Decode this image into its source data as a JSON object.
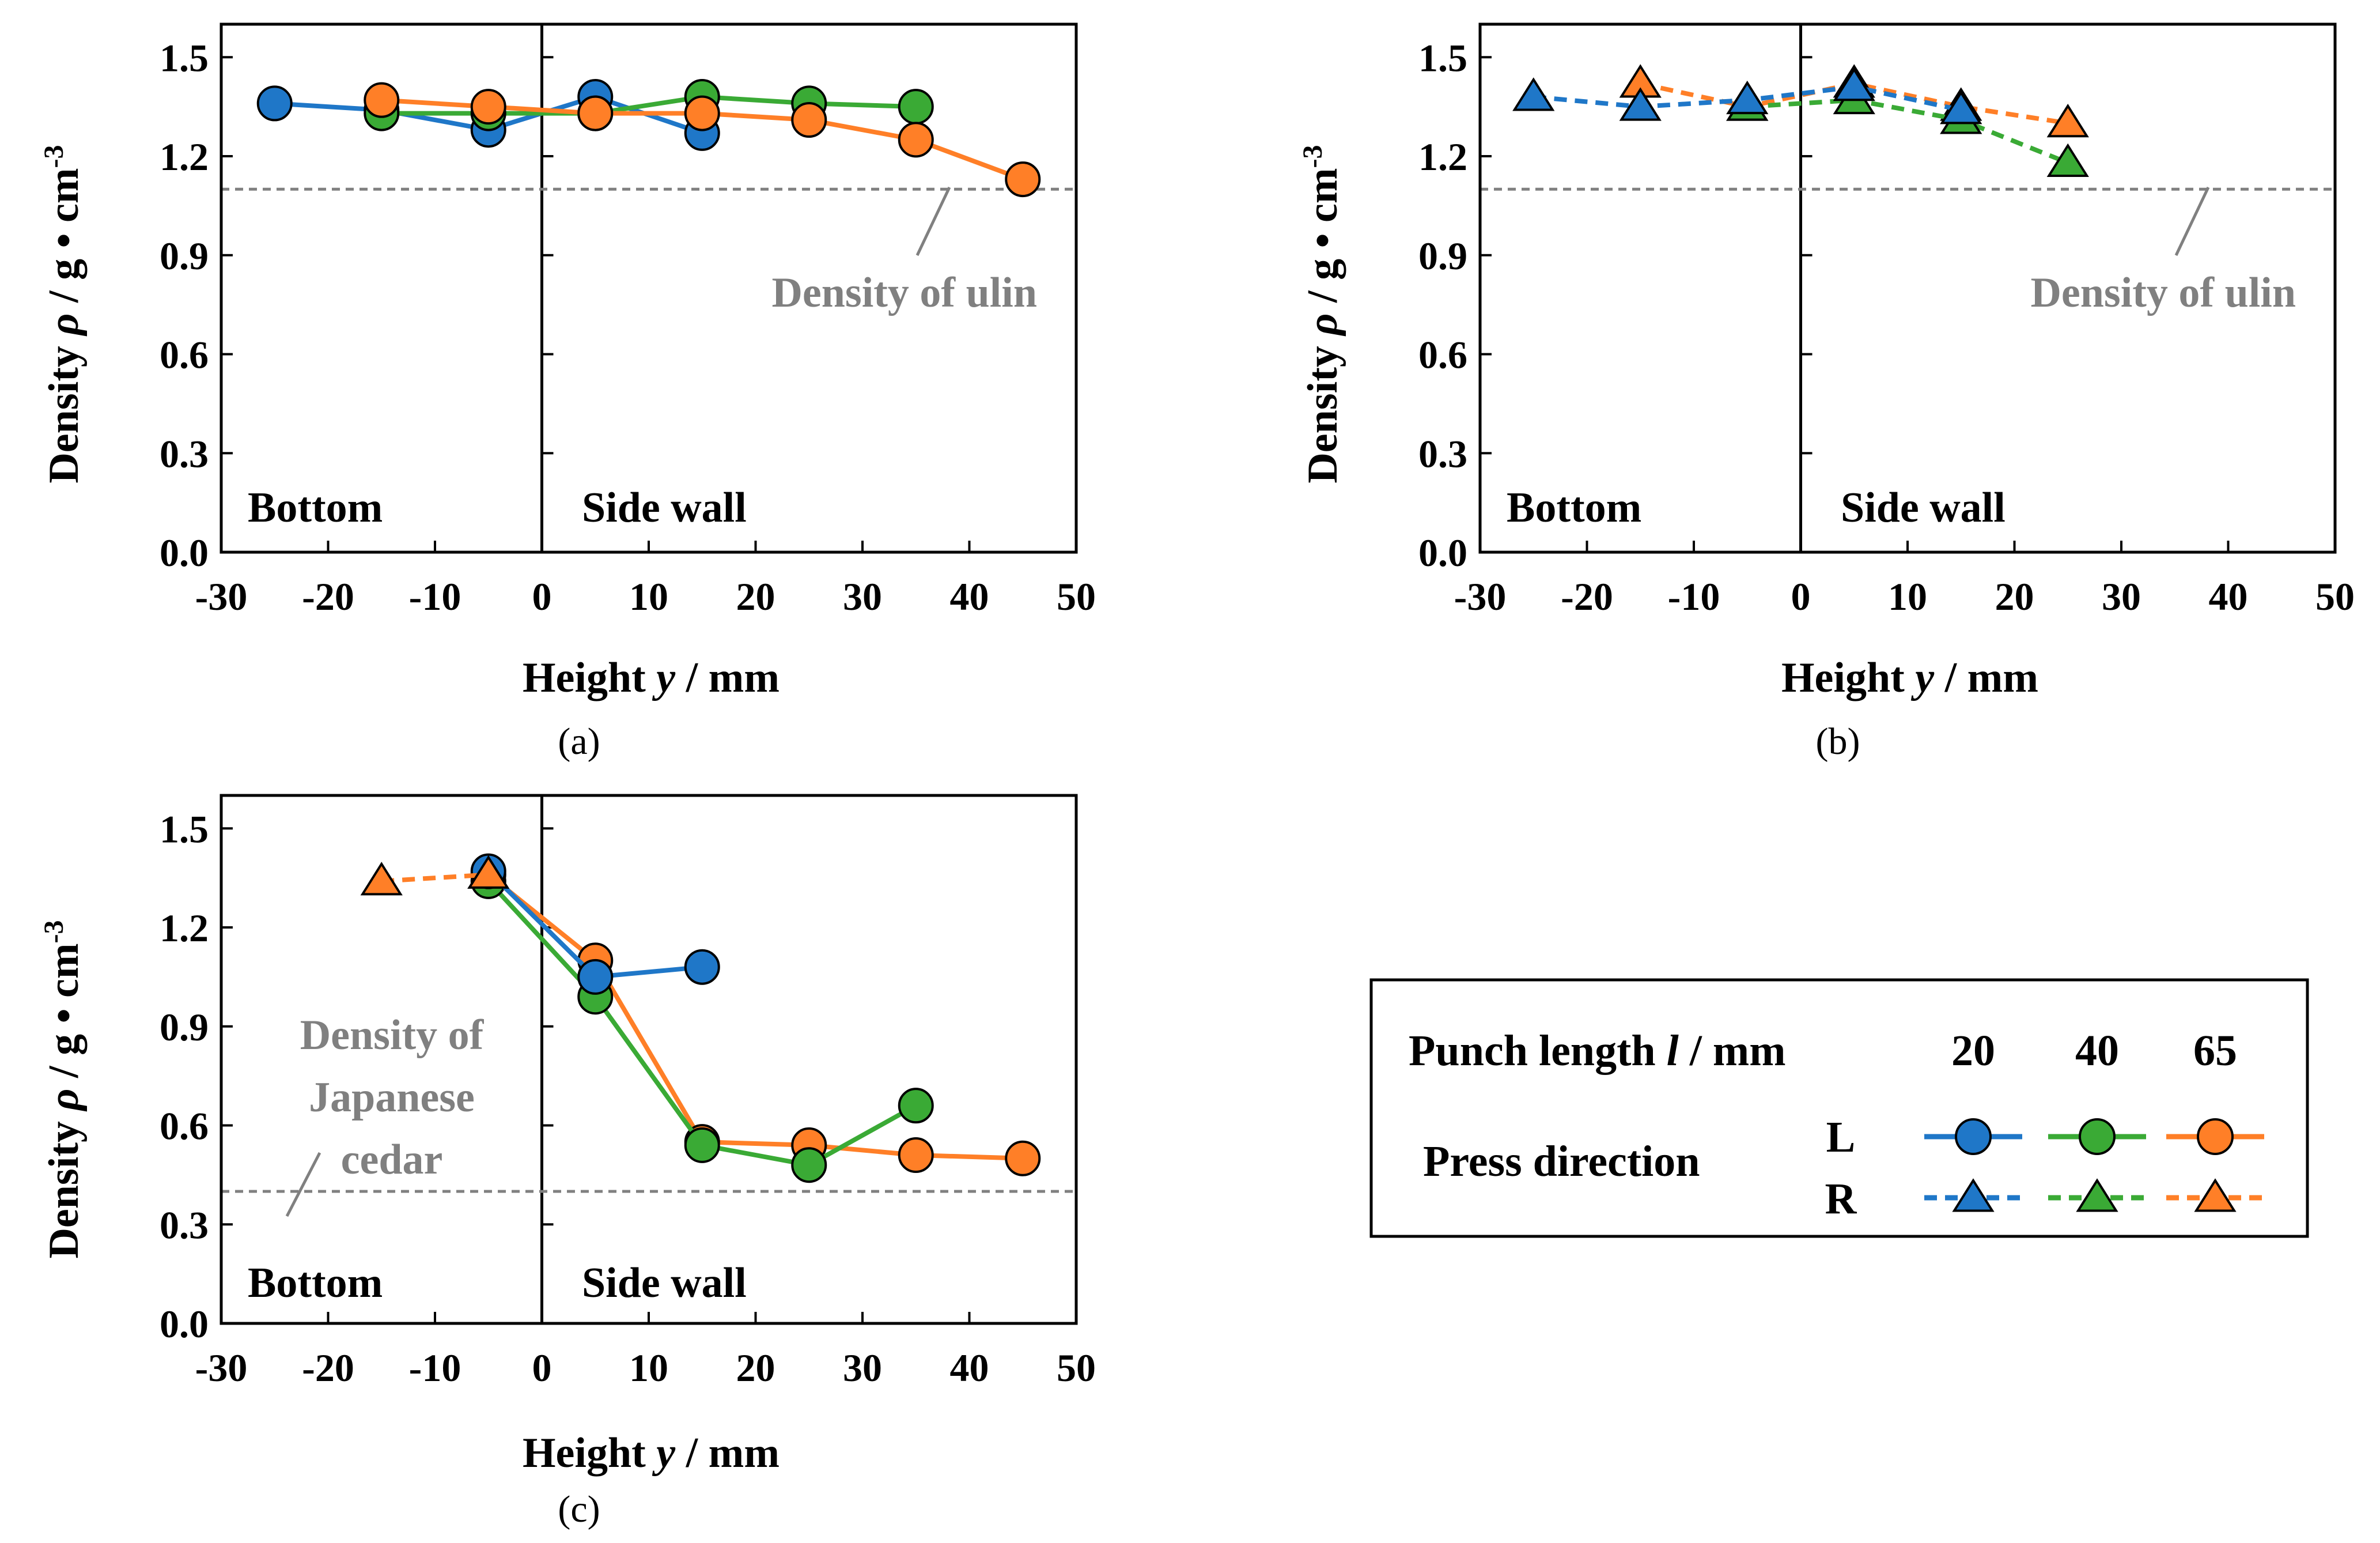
{
  "colors": {
    "20": "#1f77c8",
    "40": "#3aaa35",
    "65": "#ff7f27",
    "ref_line": "#808080"
  },
  "axes": {
    "ylabel_prefix": "Density ",
    "ylabel_symbol": "ρ",
    "ylabel_unit": " / g • cm",
    "ylabel_exp": "-3",
    "xlabel_prefix": "Height ",
    "xlabel_symbol": "y",
    "xlabel_unit": " / mm",
    "xlim": [
      -30,
      50
    ],
    "ylim": [
      0.0,
      1.6
    ],
    "xticks": [
      "-30",
      "-20",
      "-10",
      "0",
      "10",
      "20",
      "30",
      "40",
      "50"
    ],
    "yticks": [
      "0.0",
      "0.3",
      "0.6",
      "0.9",
      "1.2",
      "1.5"
    ]
  },
  "regions": {
    "bottom": "Bottom",
    "side": "Side wall"
  },
  "chart_data": [
    {
      "type": "line",
      "panel": "a",
      "caption": "(a)",
      "reference": {
        "value": 1.1,
        "label_lines": [
          "Density of ulin"
        ]
      },
      "series": [
        {
          "name": "L 20",
          "punch": "20",
          "direction": "L",
          "x": [
            -25,
            -15,
            -5,
            5,
            15
          ],
          "y": [
            1.36,
            1.34,
            1.28,
            1.38,
            1.27
          ]
        },
        {
          "name": "L 40",
          "punch": "40",
          "direction": "L",
          "x": [
            -15,
            -5,
            5,
            15,
            25,
            35
          ],
          "y": [
            1.33,
            1.33,
            1.33,
            1.38,
            1.36,
            1.35
          ]
        },
        {
          "name": "L 65",
          "punch": "65",
          "direction": "L",
          "x": [
            -15,
            -5,
            5,
            15,
            25,
            35,
            45
          ],
          "y": [
            1.37,
            1.35,
            1.33,
            1.33,
            1.31,
            1.25,
            1.13
          ]
        }
      ]
    },
    {
      "type": "line",
      "panel": "b",
      "caption": "(b)",
      "reference": {
        "value": 1.1,
        "label_lines": [
          "Density of ulin"
        ]
      },
      "series": [
        {
          "name": "R 65",
          "punch": "65",
          "direction": "R",
          "x": [
            -15,
            -5,
            5,
            15,
            25
          ],
          "y": [
            1.42,
            1.35,
            1.42,
            1.35,
            1.3
          ]
        },
        {
          "name": "R 40",
          "punch": "40",
          "direction": "R",
          "x": [
            -5,
            5,
            15,
            25
          ],
          "y": [
            1.35,
            1.37,
            1.31,
            1.18
          ]
        },
        {
          "name": "R 20",
          "punch": "20",
          "direction": "R",
          "x": [
            -25,
            -15,
            -5,
            5,
            15
          ],
          "y": [
            1.38,
            1.35,
            1.37,
            1.41,
            1.34
          ]
        }
      ]
    },
    {
      "type": "line",
      "panel": "c",
      "caption": "(c)",
      "reference": {
        "value": 0.4,
        "label_lines": [
          "Density of",
          "Japanese",
          "cedar"
        ]
      },
      "series": [
        {
          "name": "L 65",
          "punch": "65",
          "direction": "L",
          "x": [
            -5,
            5,
            15,
            25,
            35,
            45
          ],
          "y": [
            1.36,
            1.1,
            0.55,
            0.54,
            0.51,
            0.5
          ]
        },
        {
          "name": "L 40",
          "punch": "40",
          "direction": "L",
          "x": [
            -5,
            5,
            15,
            25,
            35
          ],
          "y": [
            1.34,
            0.99,
            0.54,
            0.48,
            0.66
          ]
        },
        {
          "name": "L 20",
          "punch": "20",
          "direction": "L",
          "x": [
            -5,
            5,
            15
          ],
          "y": [
            1.37,
            1.05,
            1.08
          ]
        },
        {
          "name": "R 65",
          "punch": "65",
          "direction": "R",
          "x": [
            -15,
            -5
          ],
          "y": [
            1.34,
            1.36
          ]
        }
      ]
    }
  ],
  "legend": {
    "punch_prefix": "Punch length ",
    "punch_symbol": "l",
    "punch_unit": " / mm",
    "lengths": [
      "20",
      "40",
      "65"
    ],
    "press_label": "Press direction",
    "dirs": [
      "L",
      "R"
    ]
  }
}
